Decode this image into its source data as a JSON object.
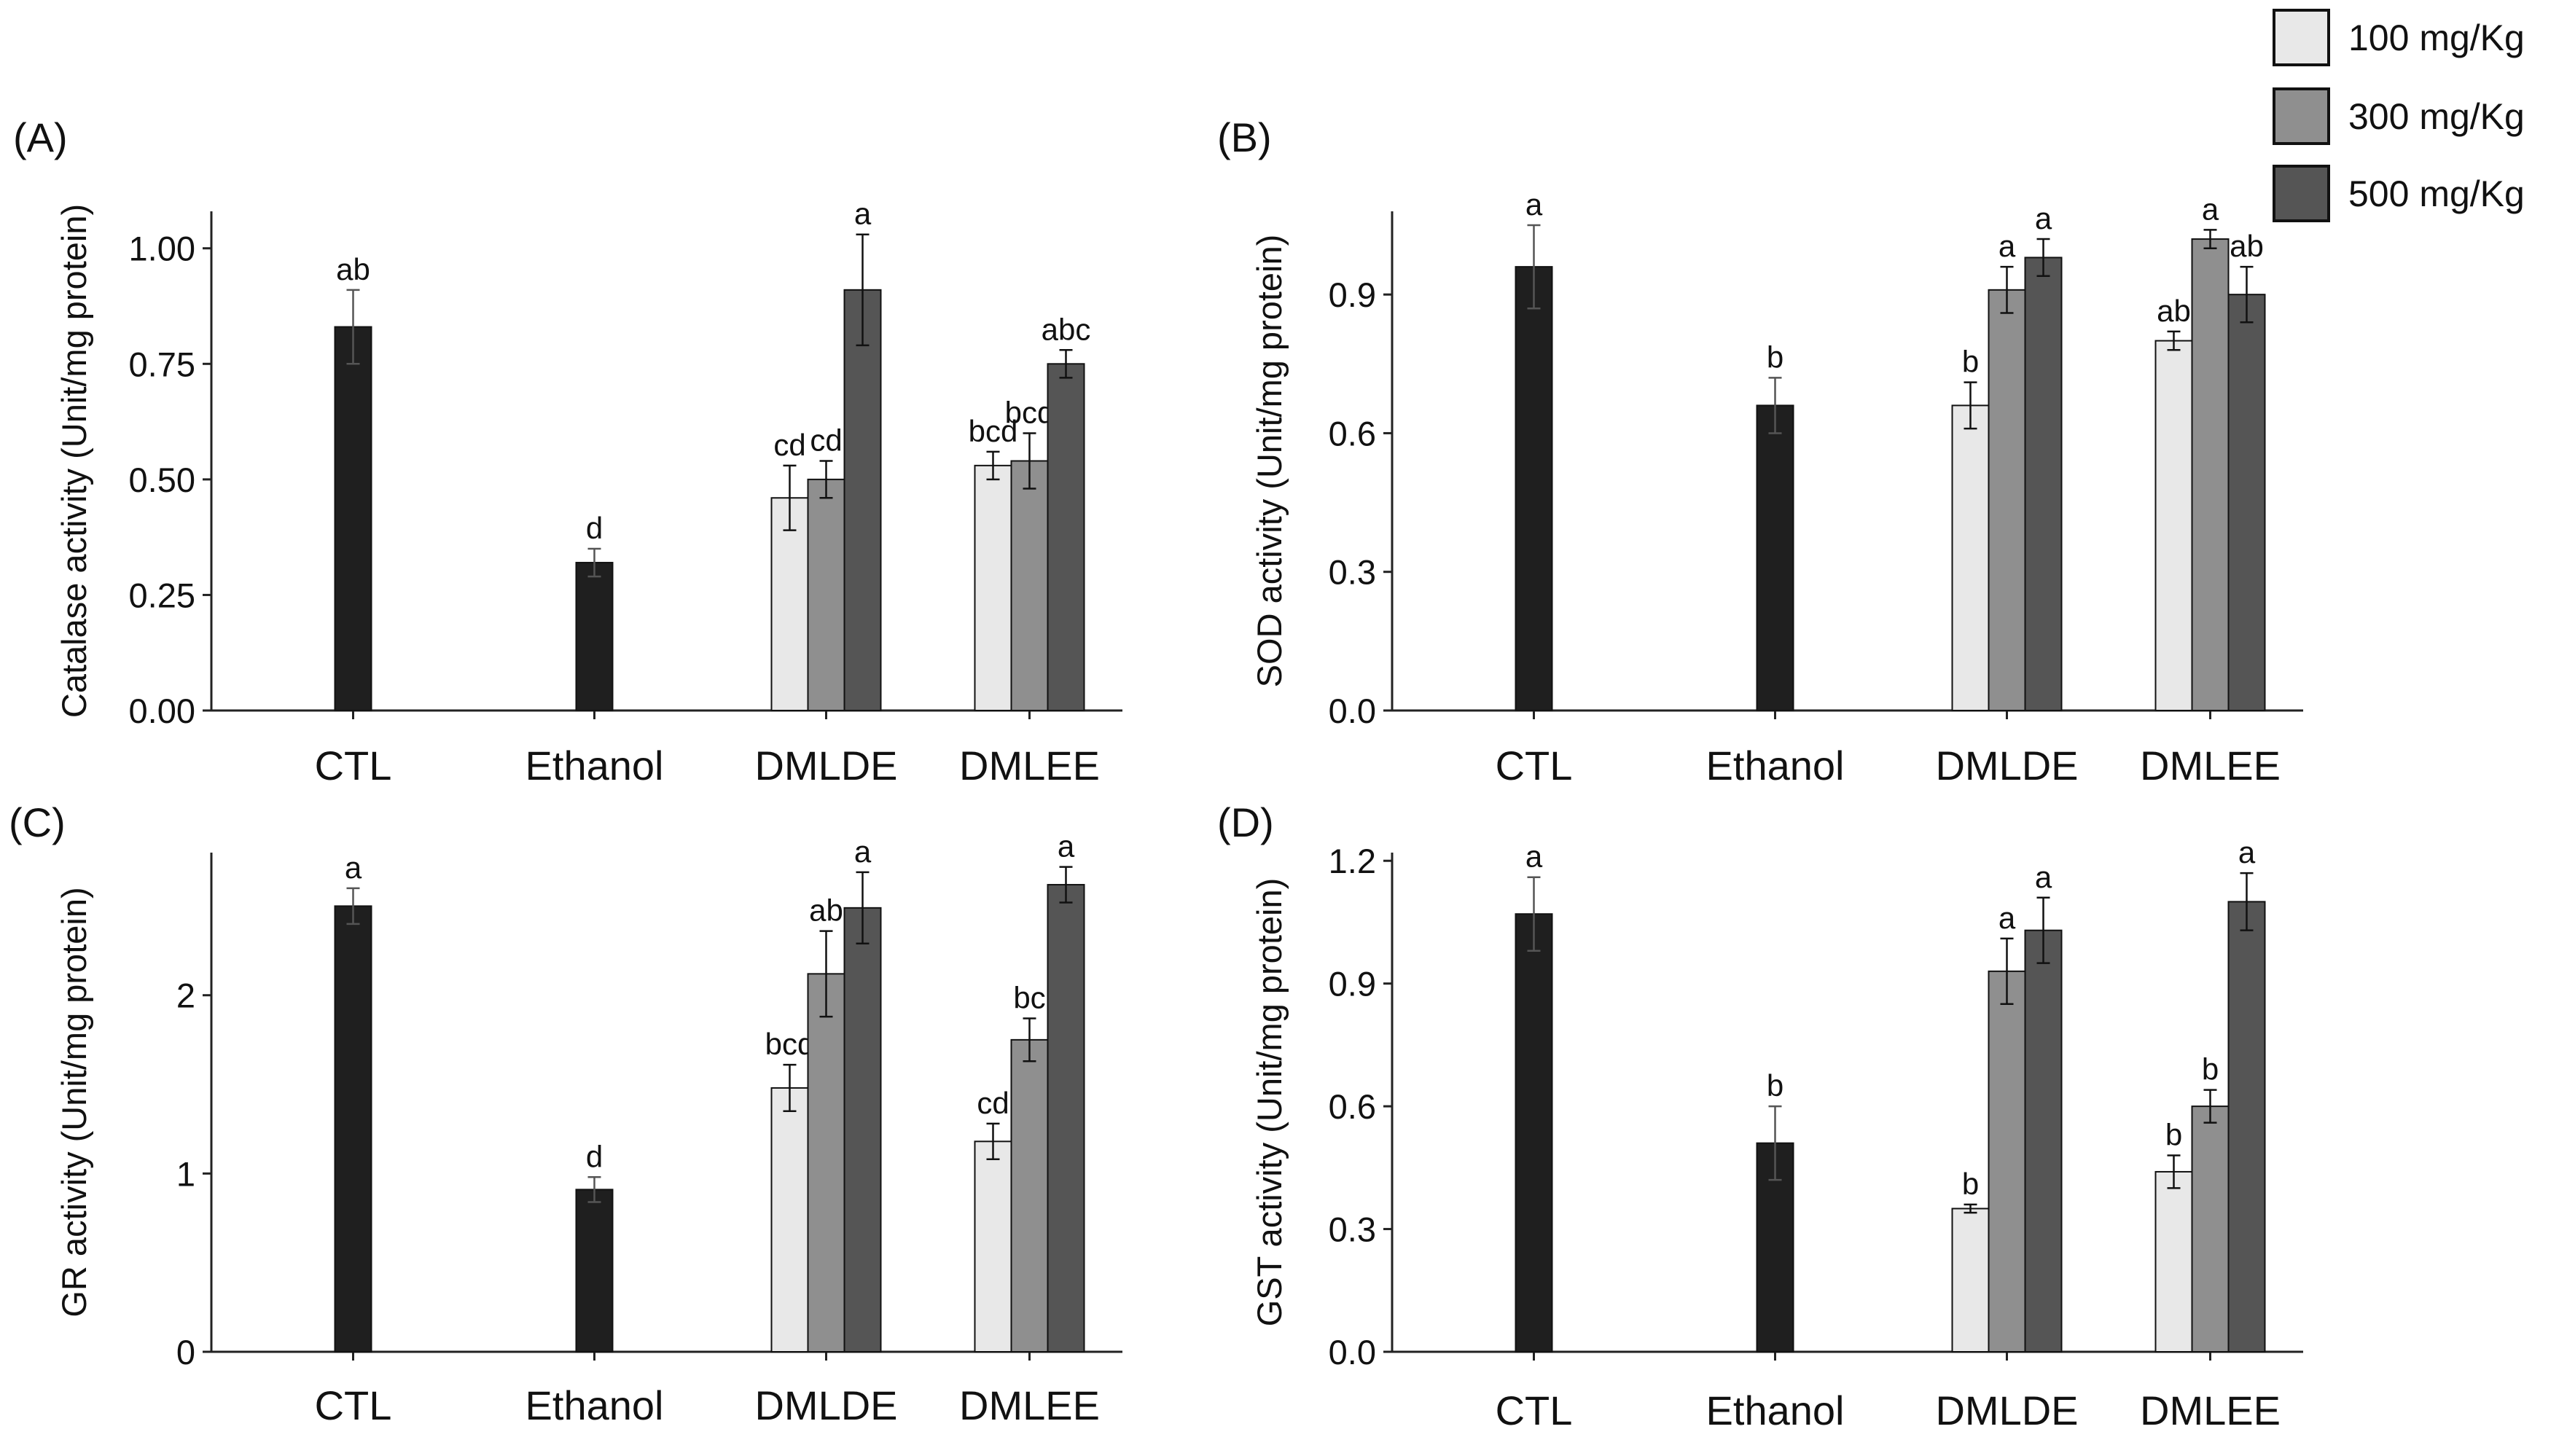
{
  "legend": [
    {
      "label": "100 mg/Kg",
      "color": "#e8e8e8"
    },
    {
      "label": "300 mg/Kg",
      "color": "#8f8f8f"
    },
    {
      "label": "500 mg/Kg",
      "color": "#555555"
    }
  ],
  "single_color": "#1f1f1f",
  "chart_data": [
    {
      "type": "bar",
      "panel_label": "(A)",
      "ylabel": "Catalase activity (Unit/mg protein)",
      "ylim": [
        0,
        1.08
      ],
      "yticks": [
        0.0,
        0.25,
        0.5,
        0.75,
        1.0
      ],
      "ytick_labels": [
        "0.00",
        "0.25",
        "0.50",
        "0.75",
        "1.00"
      ],
      "categories": [
        "CTL",
        "Ethanol",
        "DMLDE",
        "DMLEE"
      ],
      "groups": [
        {
          "category": "CTL",
          "bars": [
            {
              "dose": null,
              "value": 0.83,
              "err": 0.08,
              "letter": "ab"
            }
          ]
        },
        {
          "category": "Ethanol",
          "bars": [
            {
              "dose": null,
              "value": 0.32,
              "err": 0.03,
              "letter": "d"
            }
          ]
        },
        {
          "category": "DMLDE",
          "bars": [
            {
              "dose": "100 mg/Kg",
              "value": 0.46,
              "err": 0.07,
              "letter": "cd"
            },
            {
              "dose": "300 mg/Kg",
              "value": 0.5,
              "err": 0.04,
              "letter": "cd"
            },
            {
              "dose": "500 mg/Kg",
              "value": 0.91,
              "err": 0.12,
              "letter": "a"
            }
          ]
        },
        {
          "category": "DMLEE",
          "bars": [
            {
              "dose": "100 mg/Kg",
              "value": 0.53,
              "err": 0.03,
              "letter": "bcd"
            },
            {
              "dose": "300 mg/Kg",
              "value": 0.54,
              "err": 0.06,
              "letter": "bcd"
            },
            {
              "dose": "500 mg/Kg",
              "value": 0.75,
              "err": 0.03,
              "letter": "abc"
            }
          ]
        }
      ]
    },
    {
      "type": "bar",
      "panel_label": "(B)",
      "ylabel": "SOD activity (Unit/mg protein)",
      "ylim": [
        0,
        1.08
      ],
      "yticks": [
        0.0,
        0.3,
        0.6,
        0.9
      ],
      "ytick_labels": [
        "0.0",
        "0.3",
        "0.6",
        "0.9"
      ],
      "categories": [
        "CTL",
        "Ethanol",
        "DMLDE",
        "DMLEE"
      ],
      "groups": [
        {
          "category": "CTL",
          "bars": [
            {
              "dose": null,
              "value": 0.96,
              "err": 0.09,
              "letter": "a"
            }
          ]
        },
        {
          "category": "Ethanol",
          "bars": [
            {
              "dose": null,
              "value": 0.66,
              "err": 0.06,
              "letter": "b"
            }
          ]
        },
        {
          "category": "DMLDE",
          "bars": [
            {
              "dose": "100 mg/Kg",
              "value": 0.66,
              "err": 0.05,
              "letter": "b"
            },
            {
              "dose": "300 mg/Kg",
              "value": 0.91,
              "err": 0.05,
              "letter": "a"
            },
            {
              "dose": "500 mg/Kg",
              "value": 0.98,
              "err": 0.04,
              "letter": "a"
            }
          ]
        },
        {
          "category": "DMLEE",
          "bars": [
            {
              "dose": "100 mg/Kg",
              "value": 0.8,
              "err": 0.02,
              "letter": "ab"
            },
            {
              "dose": "300 mg/Kg",
              "value": 1.02,
              "err": 0.02,
              "letter": "a"
            },
            {
              "dose": "500 mg/Kg",
              "value": 0.9,
              "err": 0.06,
              "letter": "ab"
            }
          ]
        }
      ]
    },
    {
      "type": "bar",
      "panel_label": "(C)",
      "ylabel": "GR activity (Unit/mg protein)",
      "ylim": [
        0,
        2.8
      ],
      "yticks": [
        0,
        1,
        2
      ],
      "ytick_labels": [
        "0",
        "1",
        "2"
      ],
      "categories": [
        "CTL",
        "Ethanol",
        "DMLDE",
        "DMLEE"
      ],
      "groups": [
        {
          "category": "CTL",
          "bars": [
            {
              "dose": null,
              "value": 2.5,
              "err": 0.1,
              "letter": "a"
            }
          ]
        },
        {
          "category": "Ethanol",
          "bars": [
            {
              "dose": null,
              "value": 0.91,
              "err": 0.07,
              "letter": "d"
            }
          ]
        },
        {
          "category": "DMLDE",
          "bars": [
            {
              "dose": "100 mg/Kg",
              "value": 1.48,
              "err": 0.13,
              "letter": "bcd"
            },
            {
              "dose": "300 mg/Kg",
              "value": 2.12,
              "err": 0.24,
              "letter": "ab"
            },
            {
              "dose": "500 mg/Kg",
              "value": 2.49,
              "err": 0.2,
              "letter": "a"
            }
          ]
        },
        {
          "category": "DMLEE",
          "bars": [
            {
              "dose": "100 mg/Kg",
              "value": 1.18,
              "err": 0.1,
              "letter": "cd"
            },
            {
              "dose": "300 mg/Kg",
              "value": 1.75,
              "err": 0.12,
              "letter": "bc"
            },
            {
              "dose": "500 mg/Kg",
              "value": 2.62,
              "err": 0.1,
              "letter": "a"
            }
          ]
        }
      ]
    },
    {
      "type": "bar",
      "panel_label": "(D)",
      "ylabel": "GST activity (Unit/mg protein)",
      "ylim": [
        0,
        1.22
      ],
      "yticks": [
        0.0,
        0.3,
        0.6,
        0.9,
        1.2
      ],
      "ytick_labels": [
        "0.0",
        "0.3",
        "0.6",
        "0.9",
        "1.2"
      ],
      "categories": [
        "CTL",
        "Ethanol",
        "DMLDE",
        "DMLEE"
      ],
      "groups": [
        {
          "category": "CTL",
          "bars": [
            {
              "dose": null,
              "value": 1.07,
              "err": 0.09,
              "letter": "a"
            }
          ]
        },
        {
          "category": "Ethanol",
          "bars": [
            {
              "dose": null,
              "value": 0.51,
              "err": 0.09,
              "letter": "b"
            }
          ]
        },
        {
          "category": "DMLDE",
          "bars": [
            {
              "dose": "100 mg/Kg",
              "value": 0.35,
              "err": 0.01,
              "letter": "b"
            },
            {
              "dose": "300 mg/Kg",
              "value": 0.93,
              "err": 0.08,
              "letter": "a"
            },
            {
              "dose": "500 mg/Kg",
              "value": 1.03,
              "err": 0.08,
              "letter": "a"
            }
          ]
        },
        {
          "category": "DMLEE",
          "bars": [
            {
              "dose": "100 mg/Kg",
              "value": 0.44,
              "err": 0.04,
              "letter": "b"
            },
            {
              "dose": "300 mg/Kg",
              "value": 0.6,
              "err": 0.04,
              "letter": "b"
            },
            {
              "dose": "500 mg/Kg",
              "value": 1.1,
              "err": 0.07,
              "letter": "a"
            }
          ]
        }
      ]
    }
  ]
}
